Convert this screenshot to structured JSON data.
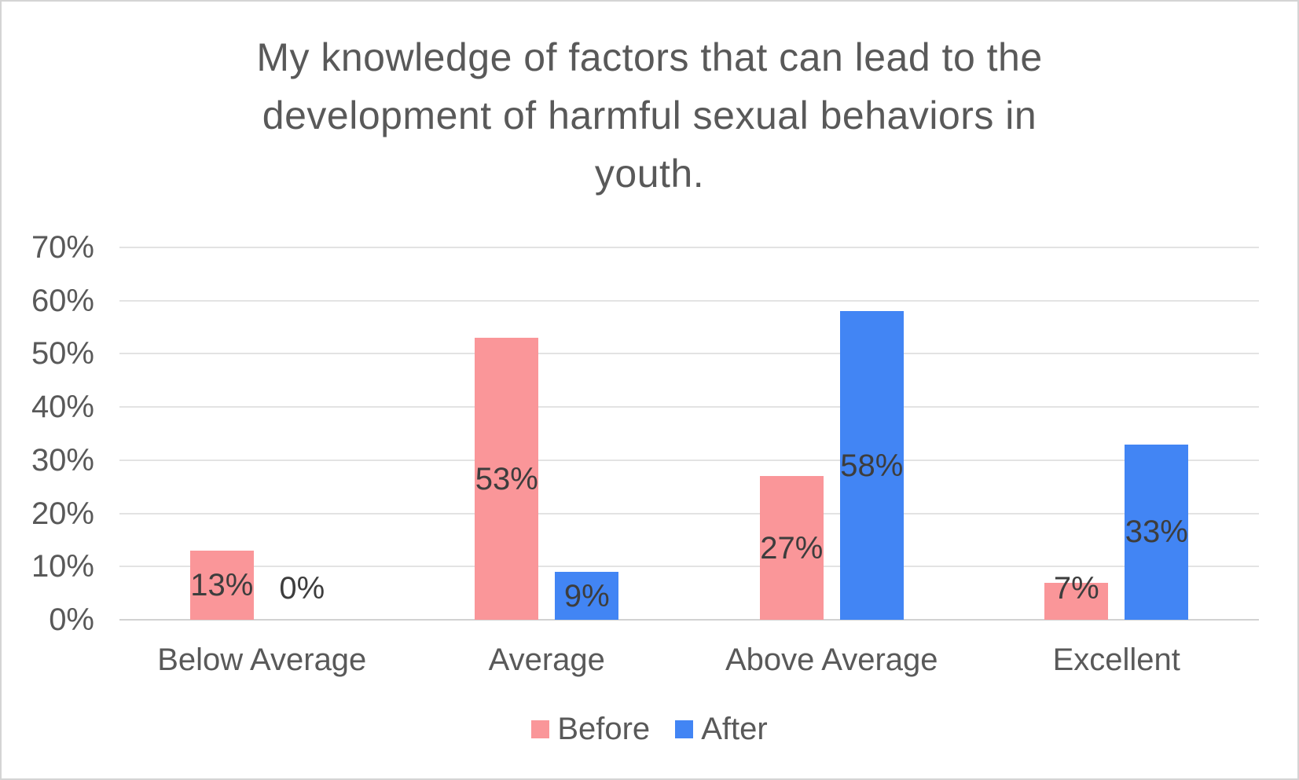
{
  "chart_data": {
    "type": "bar",
    "title": "My knowledge of factors that can lead to the development of harmful sexual behaviors in youth.",
    "title_lines": [
      "My knowledge of factors that can lead to the",
      "development of harmful sexual behaviors in",
      "youth."
    ],
    "categories": [
      "Below Average",
      "Average",
      "Above Average",
      "Excellent"
    ],
    "series": [
      {
        "name": "Before",
        "color": "#FA9699",
        "values": [
          13,
          53,
          27,
          7
        ],
        "labels": [
          "13%",
          "53%",
          "27%",
          "7%"
        ]
      },
      {
        "name": "After",
        "color": "#4285F4",
        "values": [
          0,
          9,
          58,
          33
        ],
        "labels": [
          "0%",
          "9%",
          "58%",
          "33%"
        ]
      }
    ],
    "y_axis": {
      "ticks": [
        "0%",
        "10%",
        "20%",
        "30%",
        "40%",
        "50%",
        "60%",
        "70%"
      ],
      "min": 0,
      "max": 70,
      "grid": true
    },
    "legend_position": "bottom"
  }
}
